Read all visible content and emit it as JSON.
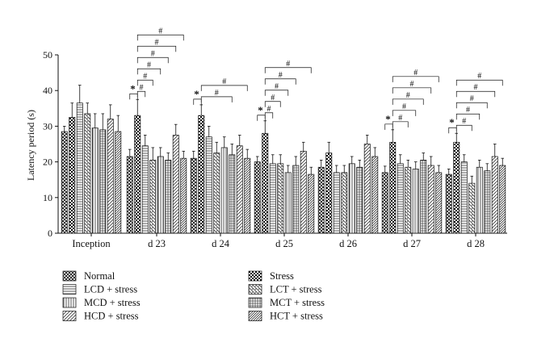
{
  "chart_data": {
    "type": "bar",
    "ylabel": "Latency period (s)",
    "ylim": [
      0,
      50
    ],
    "yticks": [
      0,
      10,
      20,
      30,
      40,
      50
    ],
    "categories": [
      "Inception",
      "d 23",
      "d 24",
      "d 25",
      "d 26",
      "d 27",
      "d 28"
    ],
    "series": [
      {
        "name": "Normal",
        "pattern": "diagcross",
        "values": [
          28.5,
          21.5,
          21,
          20,
          18.5,
          17,
          16.5
        ],
        "errors": [
          1.5,
          2,
          2,
          1.5,
          2,
          1.8,
          1.5
        ]
      },
      {
        "name": "Stress",
        "pattern": "checker",
        "values": [
          32.5,
          33,
          33,
          28,
          22.5,
          25.5,
          25.5
        ],
        "errors": [
          4,
          4.5,
          3,
          3.5,
          3,
          3.5,
          2.5
        ]
      },
      {
        "name": "LCD + stress",
        "pattern": "hlines",
        "values": [
          36.5,
          24.5,
          27,
          19.5,
          17,
          19.5,
          20
        ],
        "errors": [
          5,
          3,
          3,
          2.5,
          2,
          2.5,
          2
        ]
      },
      {
        "name": "LCT + stress",
        "pattern": "backslash",
        "values": [
          33.5,
          20.5,
          22.5,
          19.5,
          17,
          18.5,
          14
        ],
        "errors": [
          3,
          3.5,
          3,
          2.5,
          2,
          2,
          2
        ]
      },
      {
        "name": "MCD + stress",
        "pattern": "vlines",
        "values": [
          29.5,
          21.5,
          24,
          17,
          19.5,
          18,
          18.5
        ],
        "errors": [
          4,
          2.5,
          3,
          2,
          2,
          2,
          2
        ]
      },
      {
        "name": "MCT + stress",
        "pattern": "grid",
        "values": [
          29,
          20.5,
          22,
          19,
          18.5,
          20.5,
          17.5
        ],
        "errors": [
          4.5,
          2,
          3,
          2.5,
          2,
          2,
          2
        ]
      },
      {
        "name": "HCD + stress",
        "pattern": "slash",
        "values": [
          32,
          27.5,
          24.5,
          23,
          25,
          19,
          21.5
        ],
        "errors": [
          4,
          3,
          3,
          2.5,
          2.5,
          2.5,
          3.5
        ]
      },
      {
        "name": "HCT + stress",
        "pattern": "slashdense",
        "values": [
          28.5,
          21,
          21,
          16.5,
          21.5,
          17,
          19
        ],
        "errors": [
          4.5,
          2,
          2.5,
          2,
          2.5,
          2,
          2
        ]
      }
    ],
    "legend": {
      "position": "bottom",
      "columns": 2
    },
    "annotations": [
      {
        "category": "d 23",
        "from": 0,
        "to": 1,
        "symbol": "*"
      },
      {
        "category": "d 23",
        "from": 1,
        "to": 2,
        "symbol": "#"
      },
      {
        "category": "d 23",
        "from": 1,
        "to": 3,
        "symbol": "#"
      },
      {
        "category": "d 23",
        "from": 1,
        "to": 4,
        "symbol": "#"
      },
      {
        "category": "d 23",
        "from": 1,
        "to": 5,
        "symbol": "#"
      },
      {
        "category": "d 23",
        "from": 1,
        "to": 6,
        "symbol": "#"
      },
      {
        "category": "d 23",
        "from": 1,
        "to": 7,
        "symbol": "#"
      },
      {
        "category": "d 24",
        "from": 0,
        "to": 1,
        "symbol": "*"
      },
      {
        "category": "d 24",
        "from": 1,
        "to": 5,
        "symbol": "#"
      },
      {
        "category": "d 24",
        "from": 1,
        "to": 7,
        "symbol": "#"
      },
      {
        "category": "d 25",
        "from": 0,
        "to": 1,
        "symbol": "*"
      },
      {
        "category": "d 25",
        "from": 1,
        "to": 2,
        "symbol": "#"
      },
      {
        "category": "d 25",
        "from": 1,
        "to": 3,
        "symbol": "#"
      },
      {
        "category": "d 25",
        "from": 1,
        "to": 4,
        "symbol": "#"
      },
      {
        "category": "d 25",
        "from": 1,
        "to": 5,
        "symbol": "#"
      },
      {
        "category": "d 25",
        "from": 1,
        "to": 7,
        "symbol": "#"
      },
      {
        "category": "d 27",
        "from": 0,
        "to": 1,
        "symbol": "*"
      },
      {
        "category": "d 27",
        "from": 1,
        "to": 3,
        "symbol": "#"
      },
      {
        "category": "d 27",
        "from": 1,
        "to": 4,
        "symbol": "#"
      },
      {
        "category": "d 27",
        "from": 1,
        "to": 5,
        "symbol": "#"
      },
      {
        "category": "d 27",
        "from": 1,
        "to": 6,
        "symbol": "#"
      },
      {
        "category": "d 27",
        "from": 1,
        "to": 7,
        "symbol": "#"
      },
      {
        "category": "d 28",
        "from": 0,
        "to": 1,
        "symbol": "*"
      },
      {
        "category": "d 28",
        "from": 1,
        "to": 3,
        "symbol": "#"
      },
      {
        "category": "d 28",
        "from": 1,
        "to": 4,
        "symbol": "#"
      },
      {
        "category": "d 28",
        "from": 1,
        "to": 5,
        "symbol": "#"
      },
      {
        "category": "d 28",
        "from": 1,
        "to": 6,
        "symbol": "#"
      },
      {
        "category": "d 28",
        "from": 1,
        "to": 7,
        "symbol": "#"
      }
    ],
    "grid": false
  }
}
